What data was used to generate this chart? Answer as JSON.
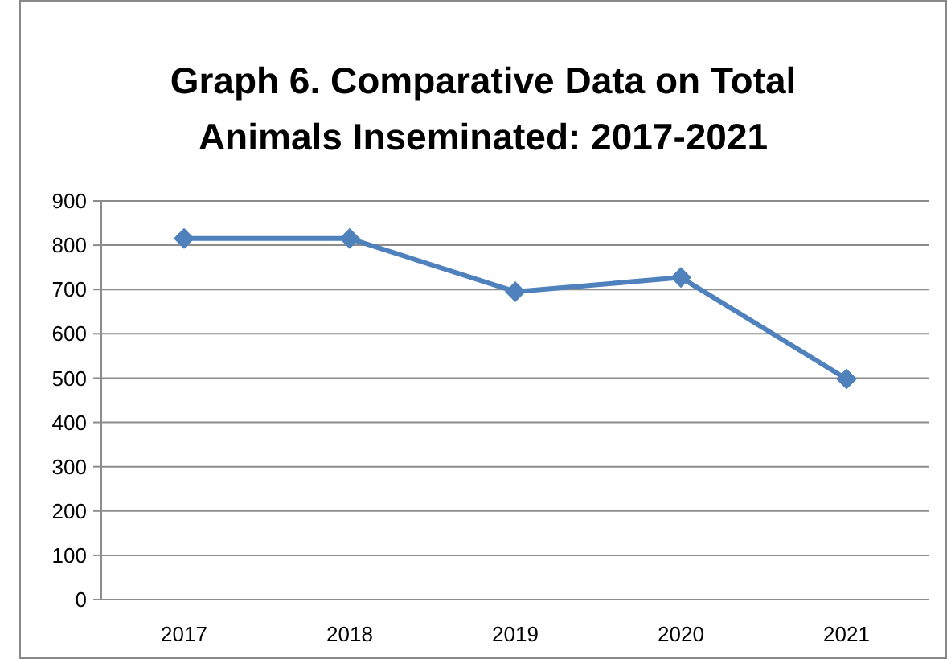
{
  "chart_data": {
    "type": "line",
    "title": "Graph 6. Comparative Data on Total Animals Inseminated: 2017-2021",
    "categories": [
      "2017",
      "2018",
      "2019",
      "2020",
      "2021"
    ],
    "series": [
      {
        "color": "#4f81bd",
        "values": [
          815,
          815,
          695,
          727,
          498
        ]
      }
    ],
    "ylim": [
      0,
      900
    ],
    "yticks": [
      0,
      100,
      200,
      300,
      400,
      500,
      600,
      700,
      800,
      900
    ],
    "grid": "y",
    "marker": "diamond",
    "line_style": "solid"
  }
}
